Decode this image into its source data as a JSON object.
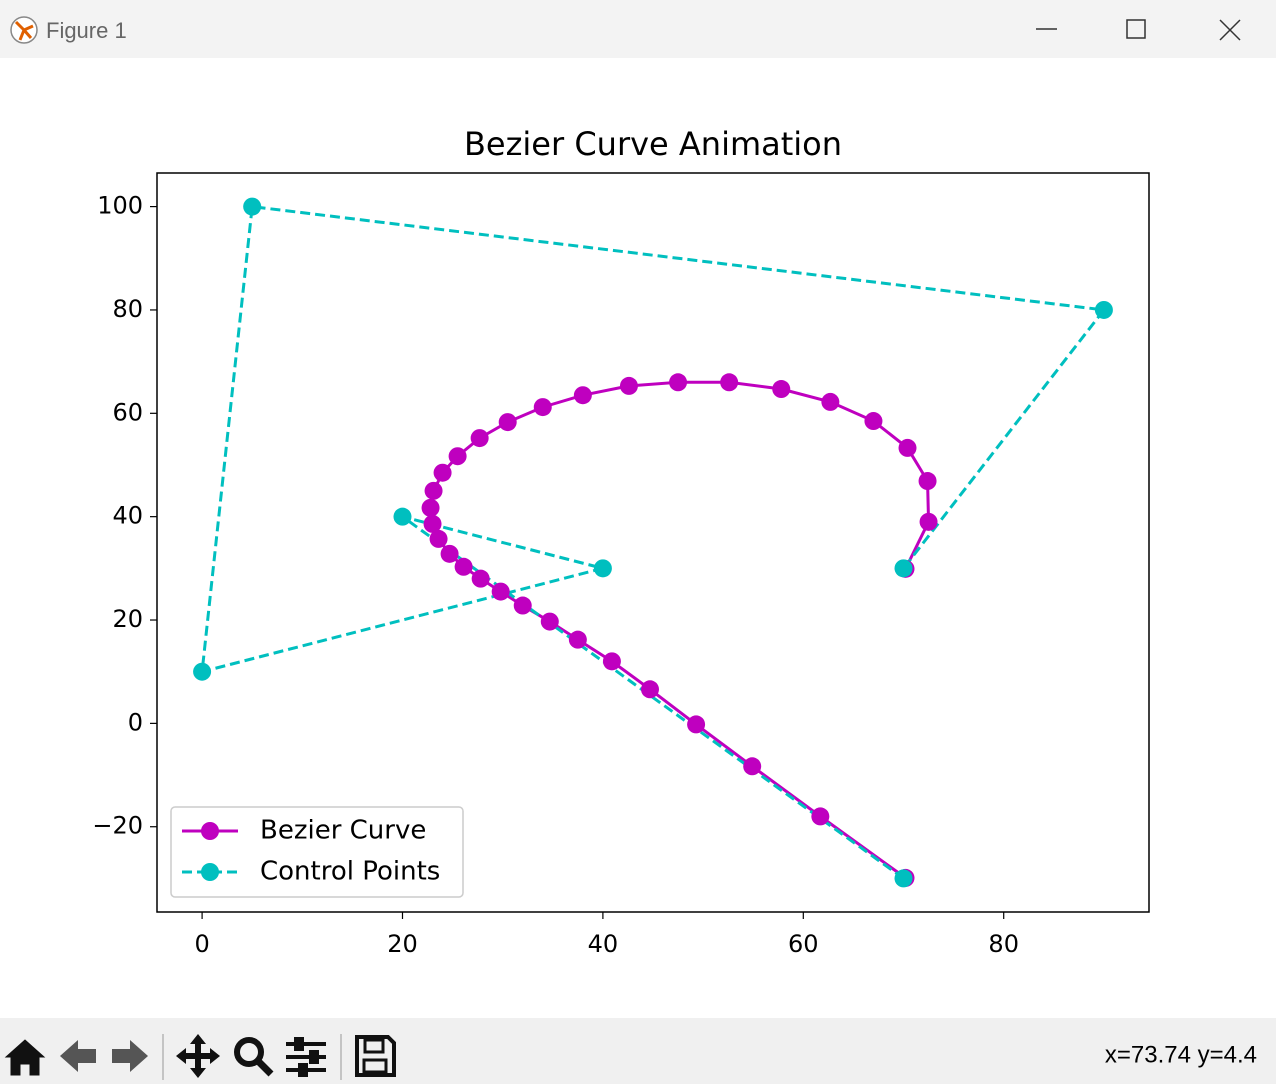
{
  "window": {
    "title": "Figure 1",
    "status": "x=73.74 y=4.4"
  },
  "chart_data": {
    "type": "line",
    "title": "Bezier Curve Animation",
    "xlim": [
      -4.5,
      94.5
    ],
    "ylim": [
      -36.5,
      106.5
    ],
    "xticks": [
      0,
      20,
      40,
      60,
      80
    ],
    "yticks": [
      {
        "value": -20,
        "label": "−20"
      },
      0,
      20,
      40,
      60,
      80,
      100
    ],
    "grid": false,
    "legend": "lower left",
    "series": [
      {
        "name": "Bezier Curve",
        "color": "#bf00bf",
        "linestyle": "solid",
        "marker": "o",
        "x": [
          70.2,
          61.7,
          54.9,
          49.3,
          44.7,
          40.9,
          37.5,
          34.7,
          32.0,
          29.8,
          27.8,
          26.1,
          24.7,
          23.6,
          23.0,
          22.8,
          23.1,
          24.0,
          25.5,
          27.7,
          30.5,
          34.0,
          38.0,
          42.6,
          47.5,
          52.6,
          57.8,
          62.7,
          67.0,
          70.4,
          72.4,
          72.5,
          70.2
        ],
        "values": [
          -29.9,
          -18.0,
          -8.3,
          -0.2,
          6.6,
          12.0,
          16.2,
          19.7,
          22.8,
          25.5,
          28.0,
          30.3,
          32.8,
          35.7,
          38.6,
          41.7,
          45.0,
          48.5,
          51.7,
          55.2,
          58.3,
          61.2,
          63.5,
          65.3,
          66.0,
          66.0,
          64.7,
          62.2,
          58.5,
          53.3,
          46.9,
          39.0,
          29.9
        ]
      },
      {
        "name": "Control Points",
        "color": "#00bfbf",
        "linestyle": "dashed",
        "marker": "o",
        "x": [
          70,
          20,
          40,
          0,
          5,
          90,
          70
        ],
        "values": [
          -30,
          40,
          30,
          10,
          100,
          80,
          30
        ]
      }
    ]
  }
}
